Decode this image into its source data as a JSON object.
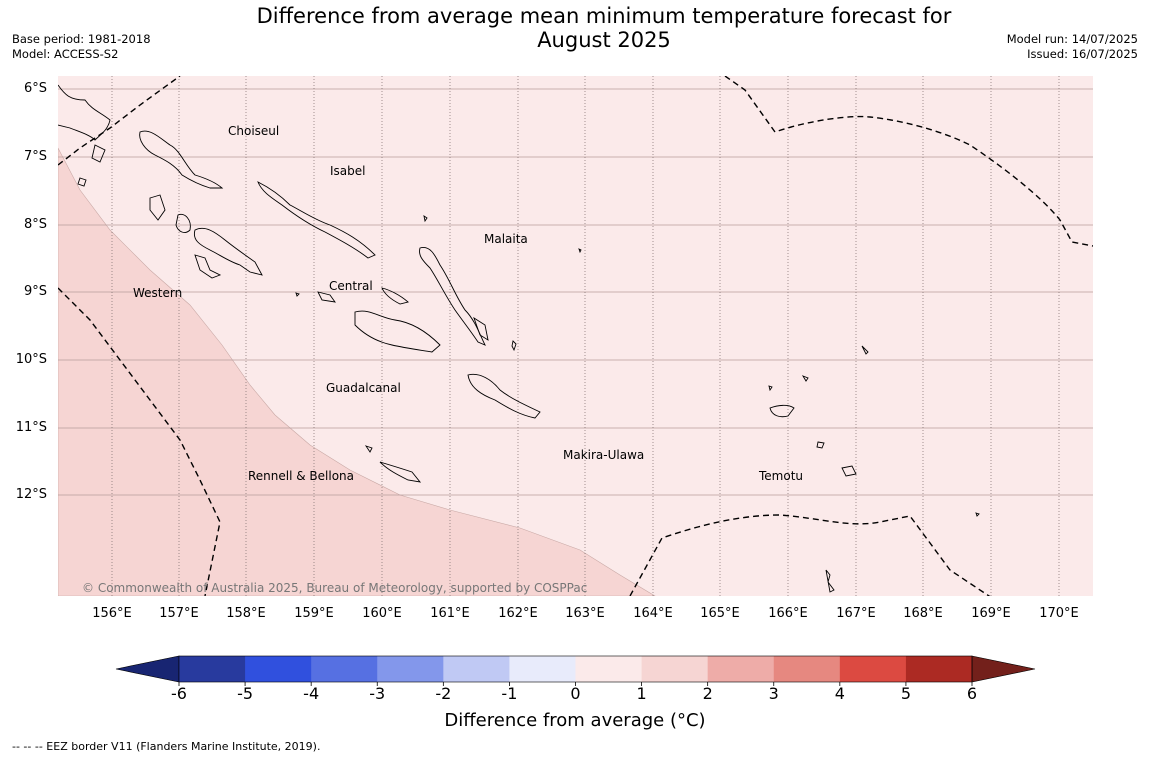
{
  "title": {
    "line1": "Difference from average mean minimum temperature forecast for",
    "line2": "August 2025"
  },
  "meta": {
    "base_period": "Base period: 1981-2018",
    "model": "Model: ACCESS-S2",
    "model_run": "Model run: 14/07/2025",
    "issued": "Issued: 16/07/2025"
  },
  "map": {
    "lat_labels": [
      "6°S",
      "7°S",
      "8°S",
      "9°S",
      "10°S",
      "11°S",
      "12°S"
    ],
    "lon_labels": [
      "156°E",
      "157°E",
      "158°E",
      "159°E",
      "160°E",
      "161°E",
      "162°E",
      "163°E",
      "164°E",
      "165°E",
      "166°E",
      "167°E",
      "168°E",
      "169°E",
      "170°E"
    ],
    "regions": [
      "Choiseul",
      "Isabel",
      "Malaita",
      "Western",
      "Central",
      "Guadalcanal",
      "Makira-Ulawa",
      "Rennell & Bellona",
      "Temotu"
    ],
    "copyright": "© Commonwealth of Australia 2025, Bureau of Meteorology, supported by COSPPac",
    "fill_colors": {
      "anomaly_0_1": "#fbeaea",
      "anomaly_1_2": "#f6d5d3"
    }
  },
  "colorbar": {
    "ticks": [
      "-6",
      "-5",
      "-4",
      "-3",
      "-2",
      "-1",
      "0",
      "1",
      "2",
      "3",
      "4",
      "5",
      "6"
    ],
    "colors": [
      "#283a9e",
      "#3050de",
      "#5670e2",
      "#8397eb",
      "#c0c9f4",
      "#e8ebfb",
      "#fbeaea",
      "#f6d5d3",
      "#eeaca8",
      "#e68880",
      "#dc4a41",
      "#ac2a23"
    ],
    "low_extend_color": "#182572",
    "high_extend_color": "#73201b",
    "title": "Difference from average (°C)"
  },
  "footnote": "--  --  -- EEZ border V11 (Flanders Marine Institute, 2019)."
}
